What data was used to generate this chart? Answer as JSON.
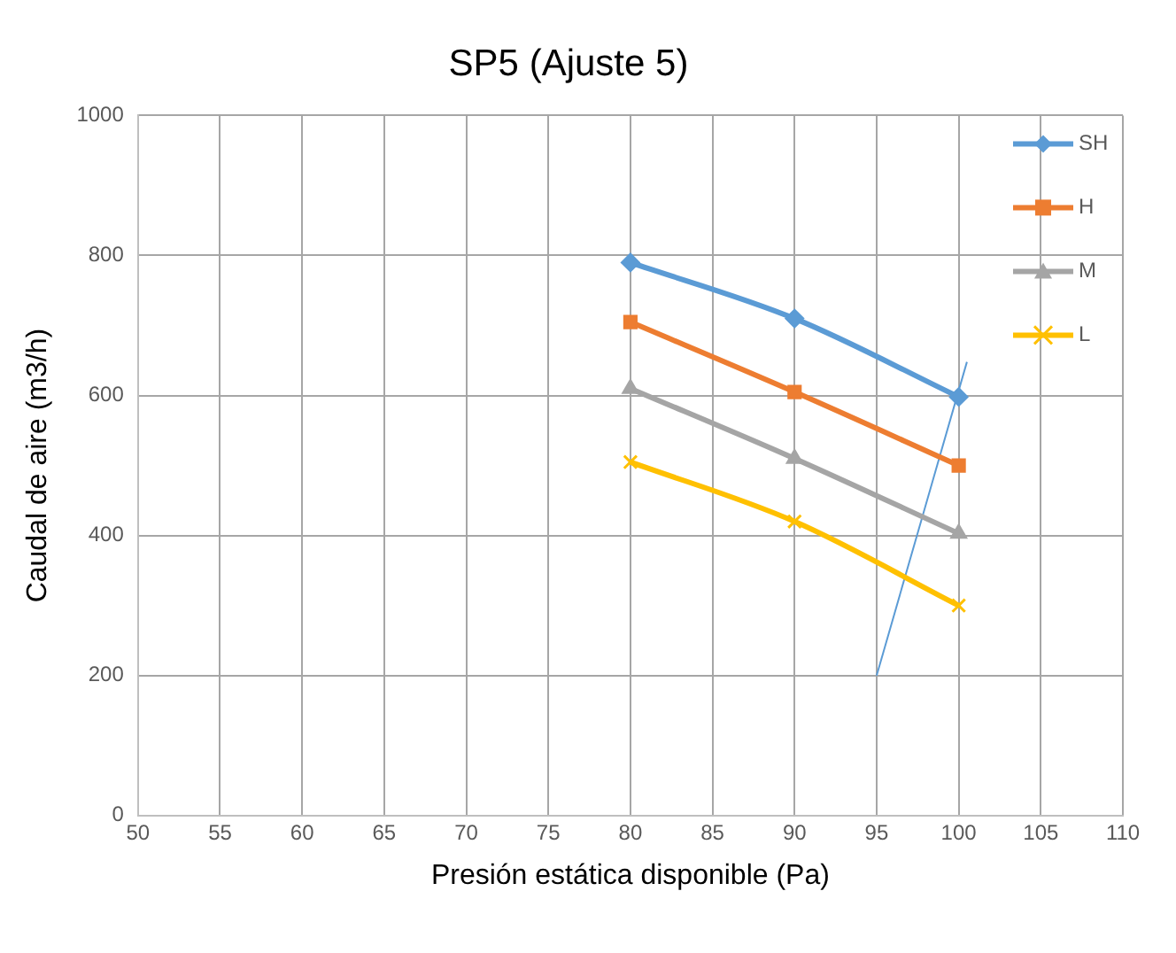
{
  "chart_data": {
    "type": "line",
    "title": "SP5 (Ajuste 5)",
    "xlabel": "Presión estática disponible (Pa)",
    "ylabel": "Caudal de aire (m3/h)",
    "x": [
      80,
      90,
      100
    ],
    "series": [
      {
        "name": "SH",
        "color": "#5b9bd5",
        "marker": "diamond",
        "values": [
          790,
          710,
          598
        ]
      },
      {
        "name": "H",
        "color": "#ed7d31",
        "marker": "square",
        "values": [
          705,
          605,
          500
        ]
      },
      {
        "name": "M",
        "color": "#a5a5a5",
        "marker": "triangle",
        "values": [
          610,
          510,
          403
        ]
      },
      {
        "name": "L",
        "color": "#ffc000",
        "marker": "cross",
        "values": [
          505,
          420,
          300
        ]
      },
      {
        "color": "#5b9bd5",
        "marker": "none",
        "x": [
          95,
          100.5
        ],
        "values": [
          200,
          648
        ]
      }
    ],
    "xlim": [
      50,
      110
    ],
    "xticks": [
      50,
      55,
      60,
      65,
      70,
      75,
      80,
      85,
      90,
      95,
      100,
      105,
      110
    ],
    "ylim": [
      0,
      1000
    ],
    "yticks": [
      0,
      200,
      400,
      600,
      800,
      1000
    ],
    "grid": true,
    "legend": "top right"
  }
}
